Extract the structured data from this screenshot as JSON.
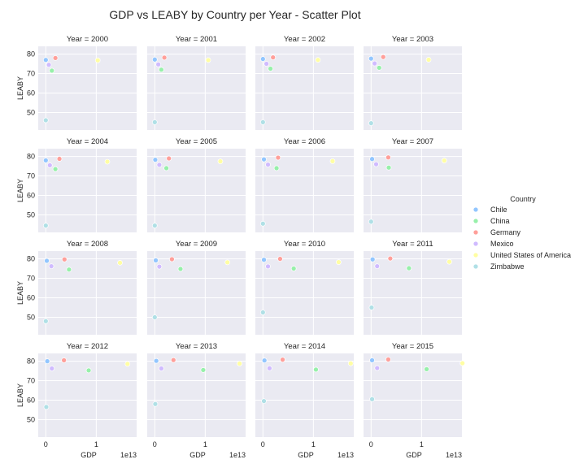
{
  "chart_data": {
    "type": "scatter",
    "title": "GDP vs LEABY by Country per Year - Scatter Plot",
    "xlabel": "GDP",
    "ylabel": "LEABY",
    "x_offset_label": "1e13",
    "xlim": [
      -0.15,
      1.8
    ],
    "ylim": [
      41,
      84
    ],
    "x_ticks": [
      0,
      1
    ],
    "y_ticks": [
      50,
      60,
      70,
      80
    ],
    "panel_title_prefix": "Year = ",
    "grid": true,
    "legend_placement": "right",
    "legend_title": "Country",
    "series": [
      {
        "name": "Chile",
        "color": "#92c6ff"
      },
      {
        "name": "China",
        "color": "#97f0aa"
      },
      {
        "name": "Germany",
        "color": "#ff9f9a"
      },
      {
        "name": "Mexico",
        "color": "#d0bbff"
      },
      {
        "name": "United States of America",
        "color": "#fffea3"
      },
      {
        "name": "Zimbabwe",
        "color": "#b0e0e6"
      }
    ],
    "panels": [
      {
        "year": "2000",
        "points": [
          [
            0.0,
            77
          ],
          [
            0.12,
            71.5
          ],
          [
            0.19,
            78
          ],
          [
            0.06,
            74.5
          ],
          [
            1.03,
            76.8
          ],
          [
            0.0,
            46
          ]
        ]
      },
      {
        "year": "2001",
        "points": [
          [
            0.0,
            77.2
          ],
          [
            0.13,
            72
          ],
          [
            0.19,
            78.2
          ],
          [
            0.07,
            74.7
          ],
          [
            1.06,
            76.9
          ],
          [
            0.0,
            45
          ]
        ]
      },
      {
        "year": "2002",
        "points": [
          [
            0.0,
            77.5
          ],
          [
            0.15,
            72.5
          ],
          [
            0.2,
            78.3
          ],
          [
            0.07,
            75
          ],
          [
            1.09,
            77
          ],
          [
            0.0,
            45
          ]
        ]
      },
      {
        "year": "2003",
        "points": [
          [
            0.0,
            77.7
          ],
          [
            0.16,
            73
          ],
          [
            0.24,
            78.5
          ],
          [
            0.07,
            75.2
          ],
          [
            1.14,
            77.1
          ],
          [
            0.0,
            44.5
          ]
        ]
      },
      {
        "year": "2004",
        "points": [
          [
            0.0,
            78
          ],
          [
            0.19,
            73.5
          ],
          [
            0.27,
            78.8
          ],
          [
            0.08,
            75.5
          ],
          [
            1.22,
            77.3
          ],
          [
            0.0,
            44.5
          ]
        ]
      },
      {
        "year": "2005",
        "points": [
          [
            0.01,
            78.3
          ],
          [
            0.23,
            74
          ],
          [
            0.28,
            79
          ],
          [
            0.09,
            75.7
          ],
          [
            1.3,
            77.5
          ],
          [
            0.0,
            44.5
          ]
        ]
      },
      {
        "year": "2006",
        "points": [
          [
            0.02,
            78.5
          ],
          [
            0.27,
            74
          ],
          [
            0.3,
            79.4
          ],
          [
            0.1,
            75.8
          ],
          [
            1.38,
            77.6
          ],
          [
            0.0,
            45.5
          ]
        ]
      },
      {
        "year": "2007",
        "points": [
          [
            0.02,
            78.7
          ],
          [
            0.35,
            74.3
          ],
          [
            0.34,
            79.5
          ],
          [
            0.1,
            76
          ],
          [
            1.45,
            77.9
          ],
          [
            0.0,
            46.5
          ]
        ]
      },
      {
        "year": "2008",
        "points": [
          [
            0.02,
            79
          ],
          [
            0.46,
            74.5
          ],
          [
            0.37,
            79.7
          ],
          [
            0.11,
            76.2
          ],
          [
            1.47,
            78
          ],
          [
            0.0,
            48
          ]
        ]
      },
      {
        "year": "2009",
        "points": [
          [
            0.02,
            79.2
          ],
          [
            0.51,
            74.8
          ],
          [
            0.34,
            79.8
          ],
          [
            0.09,
            76
          ],
          [
            1.44,
            78.2
          ],
          [
            0.0,
            50
          ]
        ]
      },
      {
        "year": "2010",
        "points": [
          [
            0.02,
            79.5
          ],
          [
            0.61,
            75
          ],
          [
            0.34,
            80
          ],
          [
            0.1,
            76.1
          ],
          [
            1.5,
            78.3
          ],
          [
            0.0,
            52.5
          ]
        ]
      },
      {
        "year": "2011",
        "points": [
          [
            0.03,
            79.7
          ],
          [
            0.75,
            75.2
          ],
          [
            0.38,
            80.2
          ],
          [
            0.12,
            76.2
          ],
          [
            1.55,
            78.5
          ],
          [
            0.01,
            55
          ]
        ]
      },
      {
        "year": "2012",
        "points": [
          [
            0.03,
            80
          ],
          [
            0.85,
            75.3
          ],
          [
            0.36,
            80.5
          ],
          [
            0.12,
            76.3
          ],
          [
            1.62,
            78.6
          ],
          [
            0.01,
            56.5
          ]
        ]
      },
      {
        "year": "2013",
        "points": [
          [
            0.03,
            80.2
          ],
          [
            0.96,
            75.5
          ],
          [
            0.37,
            80.6
          ],
          [
            0.13,
            76.3
          ],
          [
            1.68,
            78.8
          ],
          [
            0.01,
            58
          ]
        ]
      },
      {
        "year": "2014",
        "points": [
          [
            0.03,
            80.4
          ],
          [
            1.05,
            75.7
          ],
          [
            0.39,
            80.8
          ],
          [
            0.13,
            76.4
          ],
          [
            1.74,
            78.9
          ],
          [
            0.02,
            59.5
          ]
        ]
      },
      {
        "year": "2015",
        "points": [
          [
            0.02,
            80.5
          ],
          [
            1.1,
            75.9
          ],
          [
            0.34,
            80.9
          ],
          [
            0.12,
            76.5
          ],
          [
            1.81,
            79
          ],
          [
            0.02,
            60.5
          ]
        ]
      }
    ]
  }
}
